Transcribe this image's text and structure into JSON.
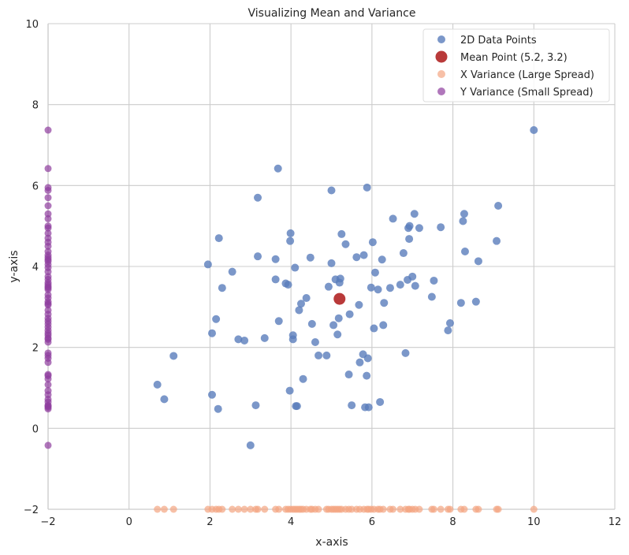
{
  "chart_data": {
    "type": "scatter",
    "title": "Visualizing Mean and Variance",
    "xlabel": "x-axis",
    "ylabel": "y-axis",
    "xlim": [
      -2,
      12
    ],
    "ylim": [
      -2,
      10
    ],
    "xticks": [
      "−2",
      "0",
      "2",
      "4",
      "6",
      "8",
      "10",
      "12"
    ],
    "yticks": [
      "−2",
      "0",
      "2",
      "4",
      "6",
      "8",
      "10"
    ],
    "grid": true,
    "legend_position": "top-right",
    "colors": {
      "data_points": "#5a7dbb",
      "mean_point": "#b93a3a",
      "x_variance": "#f4a582",
      "y_variance": "#8e3d9e"
    },
    "series": [
      {
        "name": "2D Data Points",
        "marker": "circle",
        "points": [
          [
            0.7,
            1.08
          ],
          [
            0.87,
            0.72
          ],
          [
            1.1,
            1.79
          ],
          [
            1.95,
            4.05
          ],
          [
            2.05,
            0.83
          ],
          [
            2.05,
            2.35
          ],
          [
            2.15,
            2.7
          ],
          [
            2.2,
            0.48
          ],
          [
            2.22,
            4.7
          ],
          [
            2.3,
            3.47
          ],
          [
            2.55,
            3.87
          ],
          [
            2.7,
            2.2
          ],
          [
            2.85,
            2.17
          ],
          [
            3.0,
            -0.42
          ],
          [
            3.13,
            0.57
          ],
          [
            3.18,
            5.7
          ],
          [
            3.18,
            4.25
          ],
          [
            3.35,
            2.23
          ],
          [
            3.62,
            3.68
          ],
          [
            3.62,
            4.18
          ],
          [
            3.68,
            6.42
          ],
          [
            3.7,
            2.65
          ],
          [
            3.87,
            3.58
          ],
          [
            3.93,
            3.55
          ],
          [
            3.97,
            0.93
          ],
          [
            3.98,
            4.63
          ],
          [
            3.99,
            4.82
          ],
          [
            4.05,
            2.3
          ],
          [
            4.05,
            2.2
          ],
          [
            4.1,
            3.97
          ],
          [
            4.12,
            0.55
          ],
          [
            4.15,
            0.55
          ],
          [
            4.2,
            2.92
          ],
          [
            4.25,
            3.08
          ],
          [
            4.3,
            1.22
          ],
          [
            4.38,
            3.22
          ],
          [
            4.48,
            4.22
          ],
          [
            4.52,
            2.58
          ],
          [
            4.6,
            2.13
          ],
          [
            4.68,
            1.8
          ],
          [
            4.88,
            1.8
          ],
          [
            4.93,
            3.5
          ],
          [
            5.0,
            5.88
          ],
          [
            5.0,
            4.08
          ],
          [
            5.05,
            2.55
          ],
          [
            5.1,
            3.68
          ],
          [
            5.15,
            2.32
          ],
          [
            5.18,
            2.72
          ],
          [
            5.2,
            3.6
          ],
          [
            5.22,
            3.7
          ],
          [
            5.25,
            4.8
          ],
          [
            5.35,
            4.55
          ],
          [
            5.43,
            1.33
          ],
          [
            5.45,
            2.82
          ],
          [
            5.5,
            0.57
          ],
          [
            5.62,
            4.23
          ],
          [
            5.68,
            3.05
          ],
          [
            5.7,
            1.63
          ],
          [
            5.78,
            1.83
          ],
          [
            5.8,
            4.28
          ],
          [
            5.83,
            0.52
          ],
          [
            5.87,
            1.3
          ],
          [
            5.88,
            5.95
          ],
          [
            5.9,
            1.73
          ],
          [
            5.92,
            0.52
          ],
          [
            5.98,
            3.48
          ],
          [
            6.02,
            4.6
          ],
          [
            6.05,
            2.47
          ],
          [
            6.08,
            3.85
          ],
          [
            6.15,
            3.43
          ],
          [
            6.2,
            0.65
          ],
          [
            6.25,
            4.17
          ],
          [
            6.28,
            2.55
          ],
          [
            6.3,
            3.1
          ],
          [
            6.45,
            3.47
          ],
          [
            6.52,
            5.18
          ],
          [
            6.7,
            3.55
          ],
          [
            6.78,
            4.33
          ],
          [
            6.83,
            1.86
          ],
          [
            6.88,
            3.67
          ],
          [
            6.9,
            4.95
          ],
          [
            6.92,
            4.68
          ],
          [
            6.93,
            5.0
          ],
          [
            7.0,
            3.75
          ],
          [
            7.05,
            5.3
          ],
          [
            7.07,
            3.52
          ],
          [
            7.17,
            4.95
          ],
          [
            7.48,
            3.25
          ],
          [
            7.53,
            3.65
          ],
          [
            7.7,
            4.97
          ],
          [
            7.88,
            2.42
          ],
          [
            7.93,
            2.6
          ],
          [
            8.2,
            3.1
          ],
          [
            8.25,
            5.12
          ],
          [
            8.28,
            5.3
          ],
          [
            8.3,
            4.37
          ],
          [
            8.57,
            3.13
          ],
          [
            8.63,
            4.13
          ],
          [
            9.08,
            4.63
          ],
          [
            9.12,
            5.5
          ],
          [
            10.0,
            7.37
          ]
        ]
      },
      {
        "name": "Mean Point (5.2, 3.2)",
        "marker": "circle",
        "points": [
          [
            5.2,
            3.2
          ]
        ]
      },
      {
        "name": "X Variance (Large Spread)",
        "marker": "circle",
        "points": [
          [
            0.7,
            -2
          ],
          [
            0.87,
            -2
          ],
          [
            1.1,
            -2
          ],
          [
            1.95,
            -2
          ],
          [
            2.05,
            -2
          ],
          [
            2.15,
            -2
          ],
          [
            2.22,
            -2
          ],
          [
            2.3,
            -2
          ],
          [
            2.55,
            -2
          ],
          [
            2.7,
            -2
          ],
          [
            2.85,
            -2
          ],
          [
            3.0,
            -2
          ],
          [
            3.13,
            -2
          ],
          [
            3.18,
            -2
          ],
          [
            3.35,
            -2
          ],
          [
            3.62,
            -2
          ],
          [
            3.7,
            -2
          ],
          [
            3.87,
            -2
          ],
          [
            3.93,
            -2
          ],
          [
            3.99,
            -2
          ],
          [
            4.05,
            -2
          ],
          [
            4.1,
            -2
          ],
          [
            4.15,
            -2
          ],
          [
            4.2,
            -2
          ],
          [
            4.25,
            -2
          ],
          [
            4.3,
            -2
          ],
          [
            4.38,
            -2
          ],
          [
            4.48,
            -2
          ],
          [
            4.52,
            -2
          ],
          [
            4.6,
            -2
          ],
          [
            4.68,
            -2
          ],
          [
            4.88,
            -2
          ],
          [
            4.93,
            -2
          ],
          [
            5.0,
            -2
          ],
          [
            5.05,
            -2
          ],
          [
            5.1,
            -2
          ],
          [
            5.15,
            -2
          ],
          [
            5.2,
            -2
          ],
          [
            5.25,
            -2
          ],
          [
            5.35,
            -2
          ],
          [
            5.43,
            -2
          ],
          [
            5.5,
            -2
          ],
          [
            5.62,
            -2
          ],
          [
            5.7,
            -2
          ],
          [
            5.8,
            -2
          ],
          [
            5.88,
            -2
          ],
          [
            5.92,
            -2
          ],
          [
            5.98,
            -2
          ],
          [
            6.05,
            -2
          ],
          [
            6.15,
            -2
          ],
          [
            6.2,
            -2
          ],
          [
            6.28,
            -2
          ],
          [
            6.45,
            -2
          ],
          [
            6.52,
            -2
          ],
          [
            6.7,
            -2
          ],
          [
            6.83,
            -2
          ],
          [
            6.9,
            -2
          ],
          [
            6.93,
            -2
          ],
          [
            7.0,
            -2
          ],
          [
            7.07,
            -2
          ],
          [
            7.17,
            -2
          ],
          [
            7.48,
            -2
          ],
          [
            7.53,
            -2
          ],
          [
            7.7,
            -2
          ],
          [
            7.88,
            -2
          ],
          [
            7.93,
            -2
          ],
          [
            8.2,
            -2
          ],
          [
            8.28,
            -2
          ],
          [
            8.57,
            -2
          ],
          [
            8.63,
            -2
          ],
          [
            9.08,
            -2
          ],
          [
            9.12,
            -2
          ],
          [
            10.0,
            -2
          ]
        ]
      },
      {
        "name": "Y Variance (Small Spread)",
        "marker": "circle",
        "points": [
          [
            -2,
            7.37
          ],
          [
            -2,
            6.42
          ],
          [
            -2,
            5.95
          ],
          [
            -2,
            5.88
          ],
          [
            -2,
            5.7
          ],
          [
            -2,
            5.5
          ],
          [
            -2,
            5.3
          ],
          [
            -2,
            5.18
          ],
          [
            -2,
            5.0
          ],
          [
            -2,
            4.95
          ],
          [
            -2,
            4.82
          ],
          [
            -2,
            4.7
          ],
          [
            -2,
            4.6
          ],
          [
            -2,
            4.5
          ],
          [
            -2,
            4.37
          ],
          [
            -2,
            4.28
          ],
          [
            -2,
            4.22
          ],
          [
            -2,
            4.17
          ],
          [
            -2,
            4.13
          ],
          [
            -2,
            4.05
          ],
          [
            -2,
            3.97
          ],
          [
            -2,
            3.87
          ],
          [
            -2,
            3.75
          ],
          [
            -2,
            3.68
          ],
          [
            -2,
            3.6
          ],
          [
            -2,
            3.55
          ],
          [
            -2,
            3.5
          ],
          [
            -2,
            3.47
          ],
          [
            -2,
            3.43
          ],
          [
            -2,
            3.3
          ],
          [
            -2,
            3.22
          ],
          [
            -2,
            3.13
          ],
          [
            -2,
            3.08
          ],
          [
            -2,
            3.05
          ],
          [
            -2,
            2.92
          ],
          [
            -2,
            2.82
          ],
          [
            -2,
            2.72
          ],
          [
            -2,
            2.65
          ],
          [
            -2,
            2.58
          ],
          [
            -2,
            2.5
          ],
          [
            -2,
            2.42
          ],
          [
            -2,
            2.35
          ],
          [
            -2,
            2.3
          ],
          [
            -2,
            2.23
          ],
          [
            -2,
            2.2
          ],
          [
            -2,
            2.13
          ],
          [
            -2,
            1.86
          ],
          [
            -2,
            1.8
          ],
          [
            -2,
            1.73
          ],
          [
            -2,
            1.63
          ],
          [
            -2,
            1.33
          ],
          [
            -2,
            1.3
          ],
          [
            -2,
            1.22
          ],
          [
            -2,
            1.08
          ],
          [
            -2,
            0.93
          ],
          [
            -2,
            0.83
          ],
          [
            -2,
            0.72
          ],
          [
            -2,
            0.65
          ],
          [
            -2,
            0.57
          ],
          [
            -2,
            0.55
          ],
          [
            -2,
            0.52
          ],
          [
            -2,
            0.48
          ],
          [
            -2,
            -0.42
          ]
        ]
      }
    ]
  }
}
